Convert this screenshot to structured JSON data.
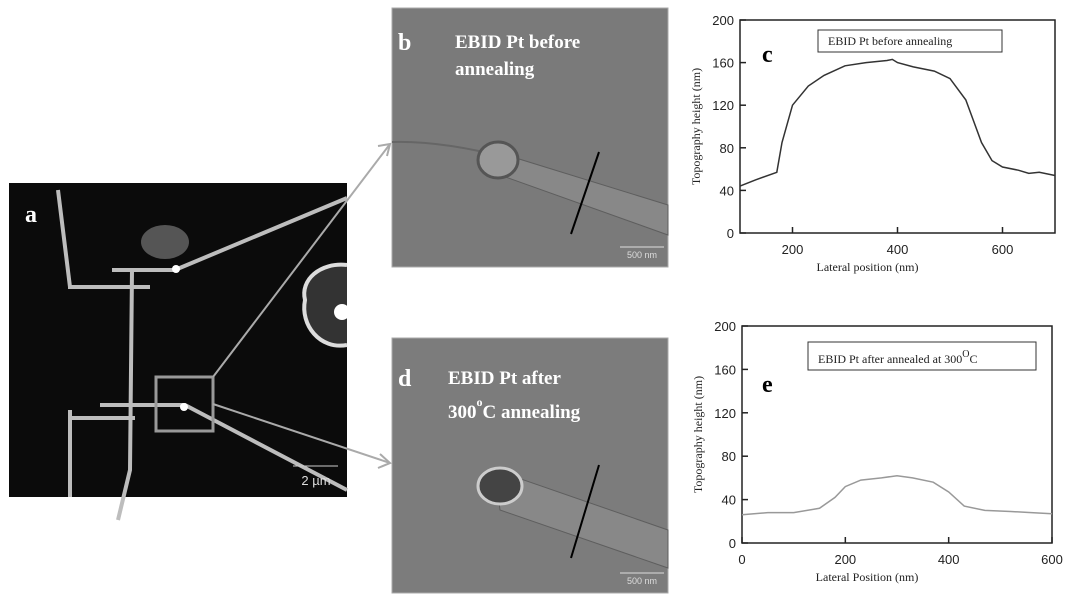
{
  "panels": {
    "a": {
      "label": "a",
      "scale_bar": "2 µm"
    },
    "b": {
      "label": "b",
      "caption_line1": "EBID Pt before",
      "caption_line2": "annealing",
      "scale_bar": "500 nm"
    },
    "d": {
      "label": "d",
      "caption_line1": "EBID Pt after",
      "caption_temp": "300",
      "caption_sup": "o",
      "caption_tail": "C annealing",
      "scale_bar": "500 nm"
    }
  },
  "chart_data": [
    {
      "type": "line",
      "label": "c",
      "annotation": "EBID Pt before annealing",
      "x_label": "Lateral position (nm)",
      "y_label": "Topography height (nm)",
      "x": [
        100,
        130,
        170,
        180,
        200,
        230,
        260,
        300,
        340,
        380,
        390,
        400,
        430,
        470,
        500,
        530,
        560,
        580,
        600,
        630,
        650,
        670,
        700
      ],
      "values": [
        44,
        50,
        57,
        85,
        120,
        138,
        148,
        157,
        160,
        162,
        163,
        160,
        156,
        152,
        145,
        125,
        85,
        68,
        62,
        59,
        56,
        57,
        54
      ],
      "color": "#333333",
      "xlim": [
        100,
        700
      ],
      "xticks": [
        200,
        400,
        600
      ],
      "ylim": [
        0,
        200
      ],
      "yticks": [
        0,
        40,
        80,
        120,
        160,
        200
      ]
    },
    {
      "type": "line",
      "label": "e",
      "annotation": "EBID Pt after annealed at 300",
      "annotation_sup": "O",
      "annotation_tail": "C",
      "x_label": "Lateral Position (nm)",
      "y_label": "Topography height (nm)",
      "x": [
        0,
        50,
        100,
        150,
        180,
        200,
        230,
        270,
        300,
        330,
        370,
        400,
        430,
        470,
        520,
        560,
        600
      ],
      "values": [
        26,
        28,
        28,
        32,
        42,
        52,
        58,
        60,
        62,
        60,
        56,
        47,
        34,
        30,
        29,
        28,
        27
      ],
      "color": "#999999",
      "xlim": [
        0,
        600
      ],
      "xticks": [
        0,
        200,
        400,
        600
      ],
      "ylim": [
        0,
        200
      ],
      "yticks": [
        0,
        40,
        80,
        120,
        160,
        200
      ]
    }
  ]
}
